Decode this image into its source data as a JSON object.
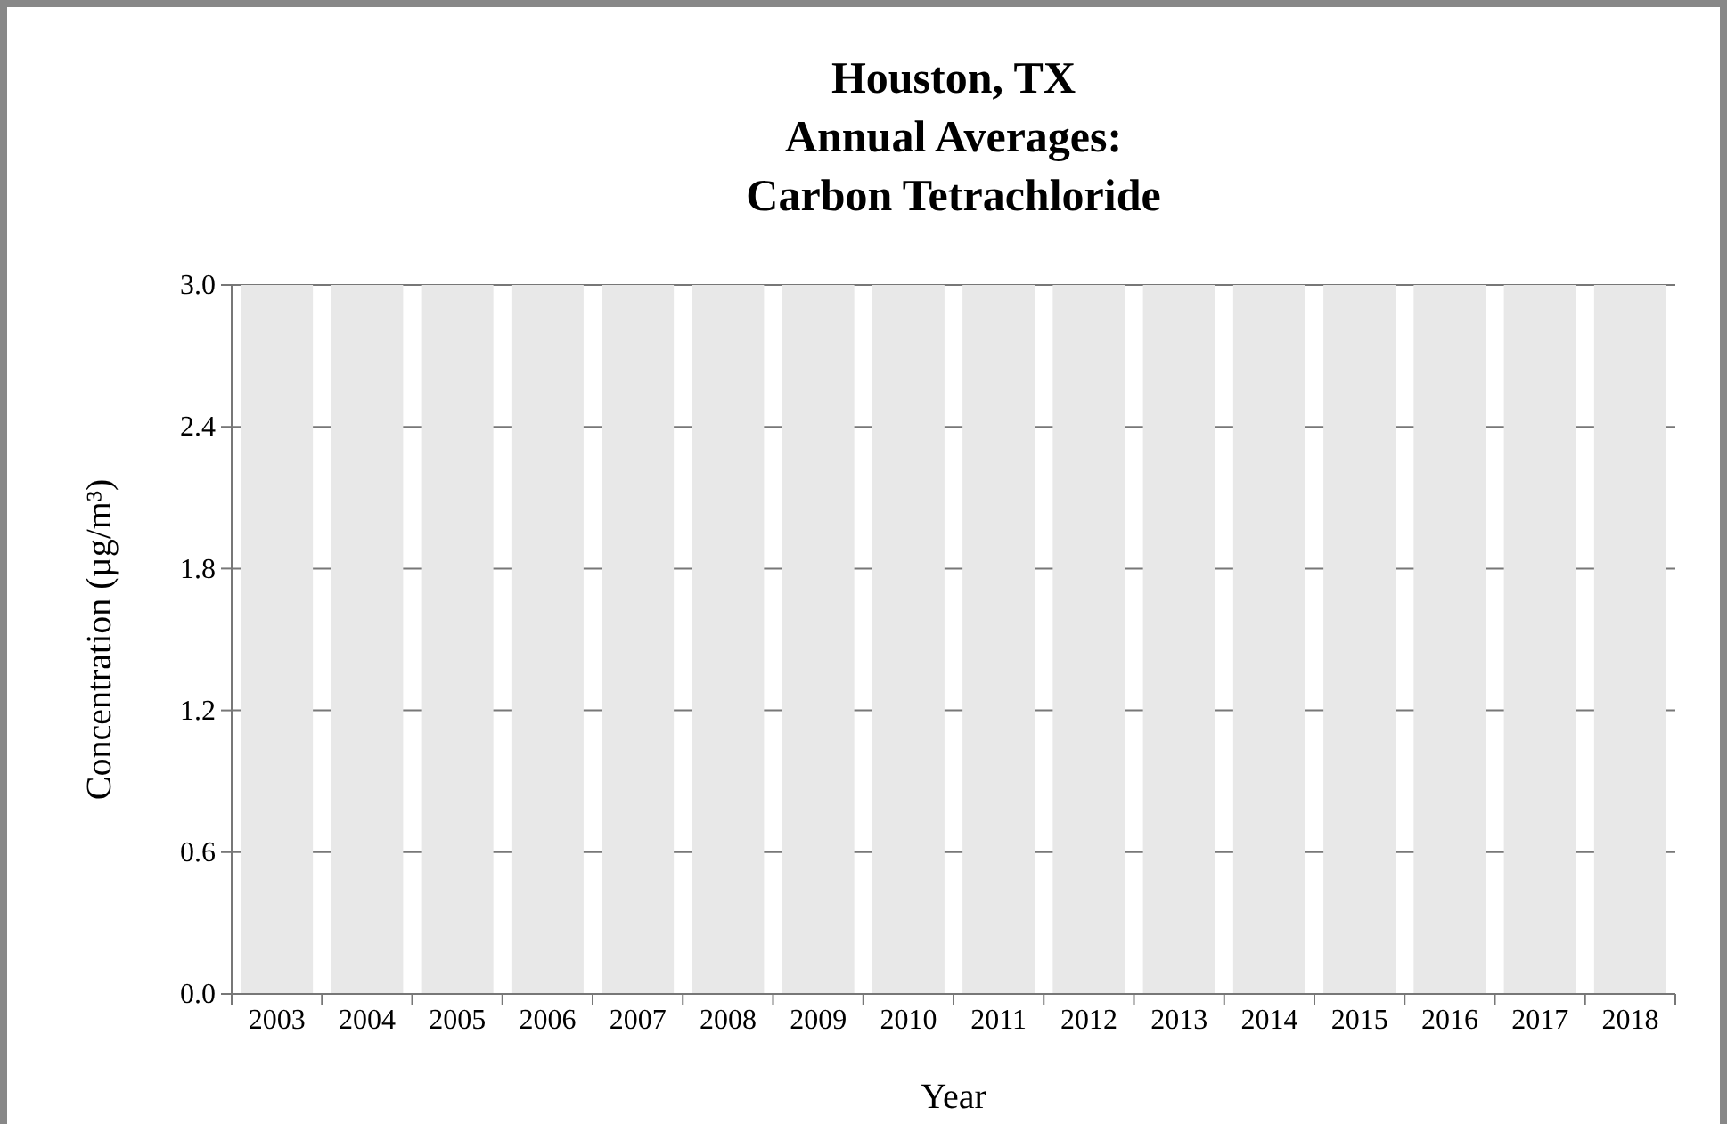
{
  "chart_data": {
    "type": "bar",
    "title": "Houston, TX\nAnnual Averages:\nCarbon Tetrachloride",
    "xlabel": "Year",
    "ylabel": "Concentration (µg/m³)",
    "categories": [
      "2003",
      "2004",
      "2005",
      "2006",
      "2007",
      "2008",
      "2009",
      "2010",
      "2011",
      "2012",
      "2013",
      "2014",
      "2015",
      "2016",
      "2017",
      "2018"
    ],
    "values": [
      3.0,
      3.0,
      3.0,
      3.0,
      3.0,
      3.0,
      3.0,
      3.0,
      3.0,
      3.0,
      3.0,
      3.0,
      3.0,
      3.0,
      3.0,
      3.0
    ],
    "color": "#e8e8e8",
    "ylim": [
      0,
      3.0
    ],
    "yticks": [
      {
        "value": 0,
        "label": "0.0"
      },
      {
        "value": 0.6,
        "label": "0.6"
      },
      {
        "value": 1.2,
        "label": "1.2"
      },
      {
        "value": 1.8,
        "label": "1.8"
      },
      {
        "value": 2.4,
        "label": "2.4"
      },
      {
        "value": 3.0,
        "label": "3.0"
      }
    ],
    "grid": "y"
  }
}
